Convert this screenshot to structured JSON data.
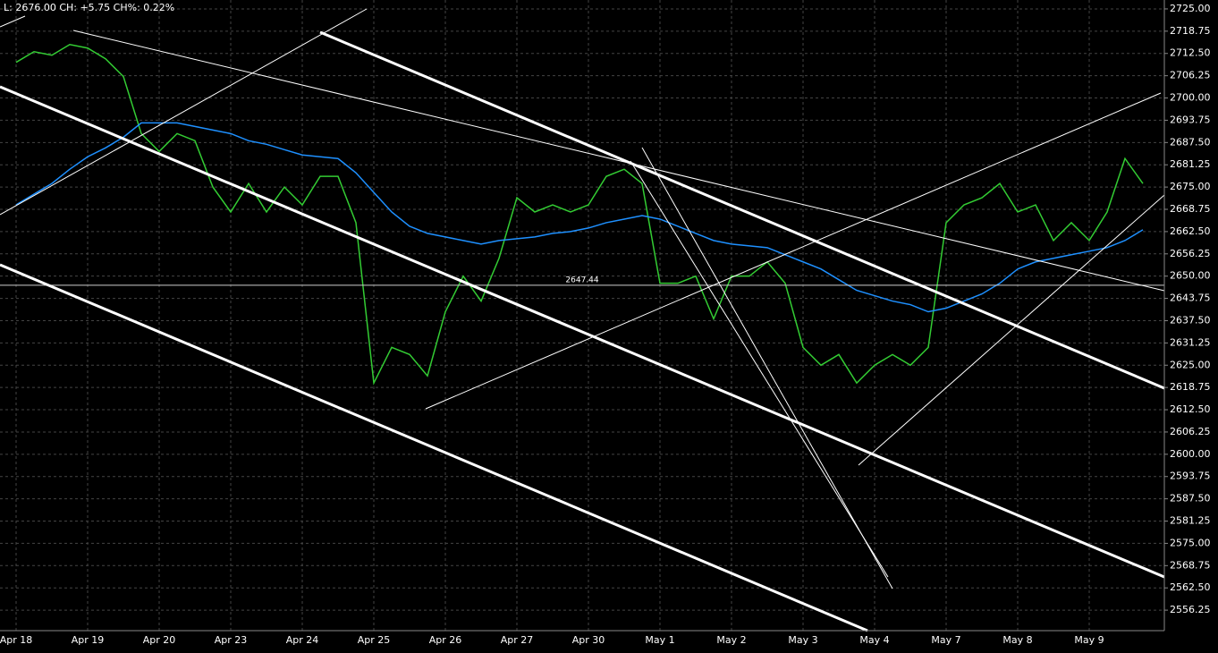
{
  "chart_data": {
    "type": "line",
    "info": "L: 2676.00 CH: +5.75  CH%: 0.22%",
    "categories": [
      "Apr 18",
      null,
      null,
      null,
      "Apr 19",
      null,
      null,
      null,
      "Apr 20",
      null,
      null,
      null,
      "Apr 23",
      null,
      null,
      null,
      "Apr 24",
      null,
      null,
      null,
      "Apr 25",
      null,
      null,
      null,
      "Apr 26",
      null,
      null,
      null,
      "Apr 27",
      null,
      null,
      null,
      "Apr 30",
      null,
      null,
      null,
      "May 1",
      null,
      null,
      null,
      "May 2",
      null,
      null,
      null,
      "May 3",
      null,
      null,
      null,
      "May 4",
      null,
      null,
      null,
      "May 7",
      null,
      null,
      null,
      "May 8",
      null,
      null,
      null,
      "May 9",
      null,
      null,
      null
    ],
    "series": [
      {
        "color": "#33cc33",
        "values": [
          2710,
          2713,
          2712,
          2715,
          2714,
          2711,
          2706,
          2690,
          2685,
          2690,
          2688,
          2675,
          2668,
          2676,
          2668,
          2675,
          2670,
          2678,
          2678,
          2665,
          2620,
          2630,
          2628,
          2622,
          2640,
          2650,
          2643,
          2655,
          2672,
          2668,
          2670,
          2668,
          2670,
          2678,
          2680,
          2676,
          2648,
          2648,
          2650,
          2638,
          2650,
          2650,
          2654,
          2648,
          2630,
          2625,
          2628,
          2620,
          2625,
          2628,
          2625,
          2630,
          2665,
          2670,
          2672,
          2676,
          2668,
          2670,
          2660,
          2665,
          2660,
          2668,
          2683,
          2676
        ]
      },
      {
        "color": "#1e90ff",
        "values": [
          2670,
          2673,
          2676,
          2680,
          2683.5,
          2686,
          2689,
          2693,
          2693,
          2693,
          2692,
          2691,
          2690,
          2688,
          2687,
          2685.5,
          2684,
          2683.5,
          2683,
          2679,
          2673.5,
          2668,
          2664,
          2662,
          2661,
          2660,
          2659,
          2660,
          2660.5,
          2661,
          2662,
          2662.5,
          2663.5,
          2665,
          2666,
          2667,
          2666,
          2664,
          2662,
          2660,
          2659,
          2658.5,
          2658,
          2656,
          2654,
          2652,
          2649,
          2646,
          2644.5,
          2643,
          2642,
          2640,
          2641,
          2643,
          2645,
          2648,
          2652,
          2654,
          2655,
          2656,
          2657,
          2658,
          2660,
          2663
        ]
      }
    ],
    "hline": {
      "value": 2647.44,
      "label": "2647.44"
    },
    "ylim": [
      2550.5,
      2727.5
    ],
    "yticks": [
      {
        "value": 2725,
        "label": "2725.00"
      },
      {
        "value": 2718.75,
        "label": "2718.75"
      },
      {
        "value": 2712.5,
        "label": "2712.50"
      },
      {
        "value": 2706.25,
        "label": "2706.25"
      },
      {
        "value": 2700,
        "label": "2700.00"
      },
      {
        "value": 2693.75,
        "label": "2693.75"
      },
      {
        "value": 2687.5,
        "label": "2687.50"
      },
      {
        "value": 2681.25,
        "label": "2681.25"
      },
      {
        "value": 2675,
        "label": "2675.00"
      },
      {
        "value": 2668.75,
        "label": "2668.75"
      },
      {
        "value": 2662.5,
        "label": "2662.50"
      },
      {
        "value": 2656.25,
        "label": "2656.25"
      },
      {
        "value": 2650,
        "label": "2650.00"
      },
      {
        "value": 2643.75,
        "label": "2643.75"
      },
      {
        "value": 2637.5,
        "label": "2637.50"
      },
      {
        "value": 2631.25,
        "label": "2631.25"
      },
      {
        "value": 2625,
        "label": "2625.00"
      },
      {
        "value": 2618.75,
        "label": "2618.75"
      },
      {
        "value": 2612.5,
        "label": "2612.50"
      },
      {
        "value": 2606.25,
        "label": "2606.25"
      },
      {
        "value": 2600,
        "label": "2600.00"
      },
      {
        "value": 2593.75,
        "label": "2593.75"
      },
      {
        "value": 2587.5,
        "label": "2587.50"
      },
      {
        "value": 2581.25,
        "label": "2581.25"
      },
      {
        "value": 2575,
        "label": "2575.00"
      },
      {
        "value": 2568.75,
        "label": "2568.75"
      },
      {
        "value": 2562.5,
        "label": "2562.50"
      },
      {
        "value": 2556.25,
        "label": "2556.25"
      }
    ],
    "grid": true
  }
}
